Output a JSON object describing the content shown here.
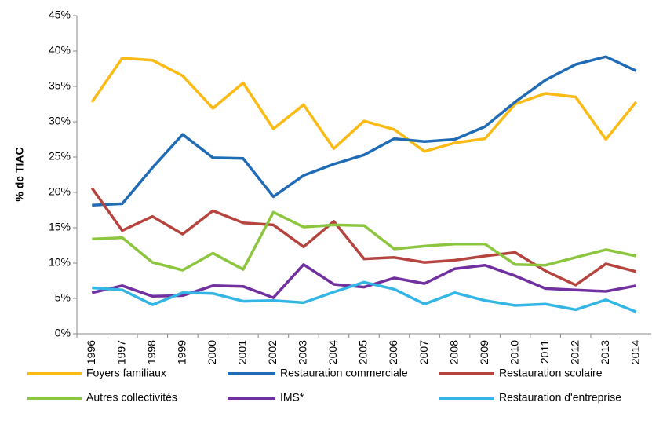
{
  "chart_data": {
    "type": "line",
    "y_label": "% de TIAC",
    "categories": [
      "1996",
      "1997",
      "1998",
      "1999",
      "2000",
      "2001",
      "2002",
      "2003",
      "2004",
      "2005",
      "2006",
      "2007",
      "2008",
      "2009",
      "2010",
      "2011",
      "2012",
      "2013",
      "2014"
    ],
    "series": [
      {
        "name": "Foyers familiaux",
        "color": "#FBBA14",
        "values": [
          32.8,
          39,
          38.7,
          36.5,
          31.9,
          35.5,
          29,
          32.4,
          26.2,
          30.1,
          28.9,
          25.8,
          27,
          27.6,
          32.5,
          34,
          33.5,
          27.5,
          32.8
        ]
      },
      {
        "name": "Restauration commerciale",
        "color": "#1F6BB5",
        "values": [
          18.2,
          18.4,
          23.5,
          28.2,
          24.9,
          24.8,
          19.4,
          22.4,
          24,
          25.3,
          27.6,
          27.2,
          27.5,
          29.3,
          32.8,
          35.9,
          38.1,
          39.2,
          37.2
        ]
      },
      {
        "name": "Restauration scolaire",
        "color": "#B5443F",
        "values": [
          20.6,
          14.6,
          16.6,
          14.1,
          17.4,
          15.7,
          15.4,
          12.3,
          15.9,
          10.6,
          10.8,
          10.1,
          10.4,
          11,
          11.5,
          8.9,
          6.9,
          9.9,
          8.8
        ]
      },
      {
        "name": "Autres collectivités",
        "color": "#8CC63E",
        "values": [
          13.4,
          13.6,
          10.1,
          9,
          11.4,
          9.1,
          17.2,
          15.1,
          15.4,
          15.3,
          12,
          12.4,
          12.7,
          12.7,
          9.8,
          9.7,
          10.8,
          11.9,
          11
        ]
      },
      {
        "name": "IMS*",
        "color": "#7030A0",
        "values": [
          5.8,
          6.8,
          5.3,
          5.4,
          6.8,
          6.7,
          5.1,
          9.8,
          7,
          6.6,
          7.9,
          7.1,
          9.2,
          9.7,
          8.2,
          6.4,
          6.2,
          6,
          6.8
        ]
      },
      {
        "name": "Restauration d'entreprise",
        "color": "#33B5E5",
        "values": [
          6.5,
          6.2,
          4.1,
          5.8,
          5.7,
          4.6,
          4.7,
          4.4,
          5.9,
          7.3,
          6.3,
          4.2,
          5.8,
          4.7,
          4,
          4.2,
          3.4,
          4.8,
          3.1
        ]
      }
    ],
    "ylim": [
      0,
      45
    ],
    "yticks": [
      {
        "value": 0,
        "label": "0%"
      },
      {
        "value": 5,
        "label": "5%"
      },
      {
        "value": 10,
        "label": "10%"
      },
      {
        "value": 15,
        "label": "15%"
      },
      {
        "value": 20,
        "label": "20%"
      },
      {
        "value": 25,
        "label": "25%"
      },
      {
        "value": 30,
        "label": "30%"
      },
      {
        "value": 35,
        "label": "35%"
      },
      {
        "value": 40,
        "label": "40%"
      },
      {
        "value": 45,
        "label": "45%"
      }
    ],
    "grid": false,
    "legend": "bottom"
  }
}
